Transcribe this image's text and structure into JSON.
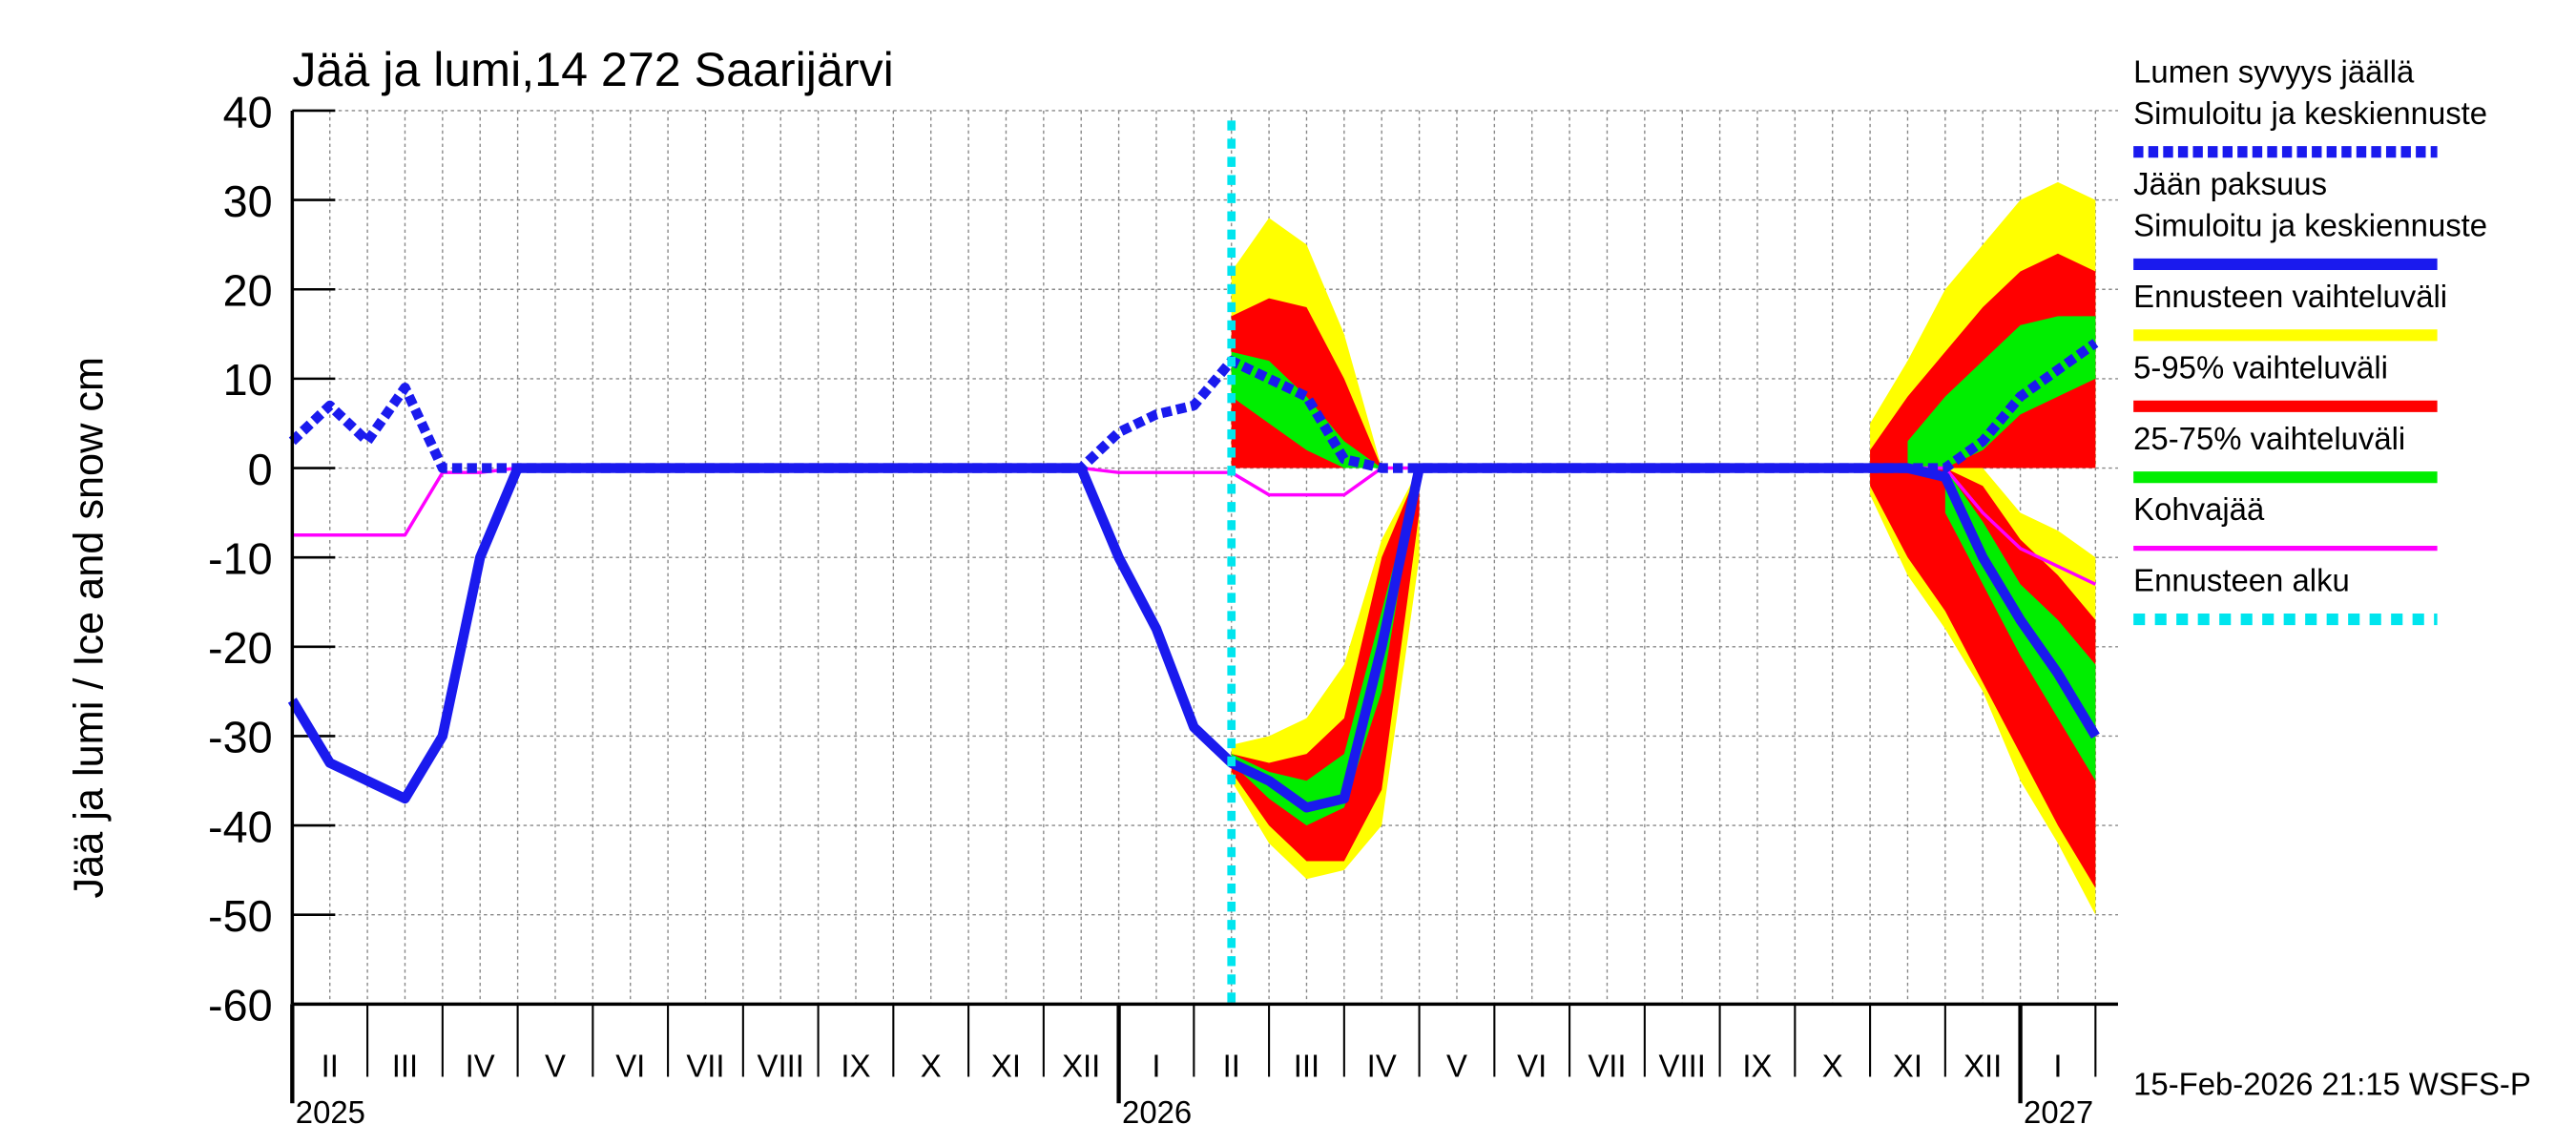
{
  "chart_data": {
    "type": "band-line",
    "title": "Jää ja lumi,14 272 Saarijärvi",
    "y_label": "Jää ja lumi / Ice and snow    cm",
    "footer": "15-Feb-2026 21:15 WSFS-P",
    "ylim": [
      -60,
      40
    ],
    "yticks": [
      -60,
      -50,
      -40,
      -30,
      -20,
      -10,
      0,
      10,
      20,
      30,
      40
    ],
    "grid": true,
    "categories": [
      null,
      "II",
      null,
      "III",
      null,
      "IV",
      null,
      "V",
      null,
      "VI",
      null,
      "VII",
      null,
      "VIII",
      null,
      "IX",
      null,
      "X",
      null,
      "XI",
      null,
      "XII",
      null,
      "I",
      null,
      "II",
      null,
      "III",
      null,
      "IV",
      null,
      "V",
      null,
      "VI",
      null,
      "VII",
      null,
      "VIII",
      null,
      "IX",
      null,
      "X",
      null,
      "XI",
      null,
      "XII",
      null,
      "I",
      null
    ],
    "years": [
      "2025",
      null,
      null,
      null,
      null,
      null,
      null,
      null,
      null,
      null,
      null,
      null,
      null,
      null,
      null,
      null,
      null,
      null,
      null,
      null,
      null,
      null,
      "2026",
      null,
      null,
      null,
      null,
      null,
      null,
      null,
      null,
      null,
      null,
      null,
      null,
      null,
      null,
      null,
      null,
      null,
      null,
      null,
      null,
      null,
      null,
      null,
      "2027",
      null,
      null
    ],
    "forecast_start": {
      "index": 25,
      "color": "#00e5ee"
    },
    "bands": [
      {
        "color": "#ffff00",
        "high": [
          null,
          null,
          null,
          null,
          null,
          null,
          null,
          null,
          null,
          null,
          null,
          null,
          null,
          null,
          null,
          null,
          null,
          null,
          null,
          null,
          null,
          null,
          null,
          null,
          null,
          22,
          28,
          25,
          15,
          0,
          null,
          null,
          null,
          null,
          null,
          null,
          null,
          null,
          null,
          null,
          null,
          null,
          5,
          12,
          20,
          25,
          30,
          32,
          30
        ],
        "low": [
          null,
          null,
          null,
          null,
          null,
          null,
          null,
          null,
          null,
          null,
          null,
          null,
          null,
          null,
          null,
          null,
          null,
          null,
          null,
          null,
          null,
          null,
          null,
          null,
          null,
          0,
          0,
          0,
          0,
          0,
          null,
          null,
          null,
          null,
          null,
          null,
          null,
          null,
          null,
          null,
          null,
          null,
          0,
          0,
          0,
          0,
          0,
          0,
          0
        ]
      },
      {
        "color": "#ffff00",
        "high": [
          null,
          null,
          null,
          null,
          null,
          null,
          null,
          null,
          null,
          null,
          null,
          null,
          null,
          null,
          null,
          null,
          null,
          null,
          null,
          null,
          null,
          null,
          null,
          null,
          null,
          -31,
          -30,
          -28,
          -22,
          -8,
          0,
          null,
          null,
          null,
          null,
          null,
          null,
          null,
          null,
          null,
          null,
          null,
          0,
          0,
          0,
          0,
          -5,
          -7,
          -10
        ],
        "low": [
          null,
          null,
          null,
          null,
          null,
          null,
          null,
          null,
          null,
          null,
          null,
          null,
          null,
          null,
          null,
          null,
          null,
          null,
          null,
          null,
          null,
          null,
          null,
          null,
          null,
          -35,
          -42,
          -46,
          -45,
          -40,
          -10,
          null,
          null,
          null,
          null,
          null,
          null,
          null,
          null,
          null,
          null,
          null,
          -3,
          -12,
          -18,
          -25,
          -35,
          -42,
          -50
        ]
      },
      {
        "color": "#ff0000",
        "high": [
          null,
          null,
          null,
          null,
          null,
          null,
          null,
          null,
          null,
          null,
          null,
          null,
          null,
          null,
          null,
          null,
          null,
          null,
          null,
          null,
          null,
          null,
          null,
          null,
          null,
          17,
          19,
          18,
          10,
          0,
          null,
          null,
          null,
          null,
          null,
          null,
          null,
          null,
          null,
          null,
          null,
          null,
          2,
          8,
          13,
          18,
          22,
          24,
          22
        ],
        "low": [
          null,
          null,
          null,
          null,
          null,
          null,
          null,
          null,
          null,
          null,
          null,
          null,
          null,
          null,
          null,
          null,
          null,
          null,
          null,
          null,
          null,
          null,
          null,
          null,
          null,
          0,
          0,
          0,
          0,
          0,
          null,
          null,
          null,
          null,
          null,
          null,
          null,
          null,
          null,
          null,
          null,
          null,
          0,
          0,
          0,
          0,
          0,
          0,
          0
        ]
      },
      {
        "color": "#ff0000",
        "high": [
          null,
          null,
          null,
          null,
          null,
          null,
          null,
          null,
          null,
          null,
          null,
          null,
          null,
          null,
          null,
          null,
          null,
          null,
          null,
          null,
          null,
          null,
          null,
          null,
          null,
          -32,
          -33,
          -32,
          -28,
          -10,
          0,
          null,
          null,
          null,
          null,
          null,
          null,
          null,
          null,
          null,
          null,
          null,
          0,
          0,
          0,
          -2,
          -8,
          -12,
          -17
        ],
        "low": [
          null,
          null,
          null,
          null,
          null,
          null,
          null,
          null,
          null,
          null,
          null,
          null,
          null,
          null,
          null,
          null,
          null,
          null,
          null,
          null,
          null,
          null,
          null,
          null,
          null,
          -34,
          -40,
          -44,
          -44,
          -36,
          -5,
          null,
          null,
          null,
          null,
          null,
          null,
          null,
          null,
          null,
          null,
          null,
          -2,
          -10,
          -16,
          -24,
          -32,
          -40,
          -47
        ]
      },
      {
        "color": "#00ee00",
        "high": [
          null,
          null,
          null,
          null,
          null,
          null,
          null,
          null,
          null,
          null,
          null,
          null,
          null,
          null,
          null,
          null,
          null,
          null,
          null,
          null,
          null,
          null,
          null,
          null,
          null,
          13,
          12,
          8,
          3,
          0,
          null,
          null,
          null,
          null,
          null,
          null,
          null,
          null,
          null,
          null,
          null,
          null,
          null,
          3,
          8,
          12,
          16,
          17,
          17
        ],
        "low": [
          null,
          null,
          null,
          null,
          null,
          null,
          null,
          null,
          null,
          null,
          null,
          null,
          null,
          null,
          null,
          null,
          null,
          null,
          null,
          null,
          null,
          null,
          null,
          null,
          null,
          8,
          5,
          2,
          0,
          0,
          null,
          null,
          null,
          null,
          null,
          null,
          null,
          null,
          null,
          null,
          null,
          null,
          null,
          0,
          0,
          2,
          6,
          8,
          10
        ]
      },
      {
        "color": "#00ee00",
        "high": [
          null,
          null,
          null,
          null,
          null,
          null,
          null,
          null,
          null,
          null,
          null,
          null,
          null,
          null,
          null,
          null,
          null,
          null,
          null,
          null,
          null,
          null,
          null,
          null,
          null,
          -32,
          -34,
          -35,
          -32,
          -16,
          0,
          null,
          null,
          null,
          null,
          null,
          null,
          null,
          null,
          null,
          null,
          null,
          null,
          null,
          0,
          -6,
          -13,
          -17,
          -22
        ],
        "low": [
          null,
          null,
          null,
          null,
          null,
          null,
          null,
          null,
          null,
          null,
          null,
          null,
          null,
          null,
          null,
          null,
          null,
          null,
          null,
          null,
          null,
          null,
          null,
          null,
          null,
          -33,
          -37,
          -40,
          -38,
          -25,
          0,
          null,
          null,
          null,
          null,
          null,
          null,
          null,
          null,
          null,
          null,
          null,
          null,
          null,
          -5,
          -13,
          -21,
          -28,
          -35
        ]
      }
    ],
    "series": [
      {
        "color": "#ff00ff",
        "style": "thin",
        "values": [
          -7.5,
          -7.5,
          -7.5,
          -7.5,
          -0.5,
          -0.5,
          0,
          0,
          0,
          0,
          0,
          0,
          0,
          0,
          0,
          0,
          0,
          0,
          0,
          0,
          0,
          0,
          -0.5,
          -0.5,
          -0.5,
          -0.5,
          -3,
          -3,
          -3,
          0,
          0,
          0,
          0,
          0,
          0,
          0,
          0,
          0,
          0,
          0,
          0,
          0,
          0,
          0,
          0,
          -5,
          -9,
          -11,
          -13
        ]
      },
      {
        "color": "#1a1aee",
        "style": "solid",
        "values": [
          -26,
          -33,
          -35,
          -37,
          -30,
          -10,
          0,
          0,
          0,
          0,
          0,
          0,
          0,
          0,
          0,
          0,
          0,
          0,
          0,
          0,
          0,
          0,
          -10,
          -18,
          -29,
          -33,
          -35,
          -38,
          -37,
          -20,
          0,
          0,
          0,
          0,
          0,
          0,
          0,
          0,
          0,
          0,
          0,
          0,
          0,
          0,
          -1,
          -10,
          -17,
          -23,
          -30
        ]
      },
      {
        "color": "#1a1aee",
        "style": "dashed",
        "values": [
          3,
          7,
          3,
          9,
          0,
          0,
          0,
          0,
          0,
          0,
          0,
          0,
          0,
          0,
          0,
          0,
          0,
          0,
          0,
          0,
          0,
          0,
          4,
          6,
          7,
          12,
          10,
          8,
          1,
          0,
          0,
          0,
          0,
          0,
          0,
          0,
          0,
          0,
          0,
          0,
          0,
          0,
          0,
          0,
          0,
          3,
          8,
          11,
          14
        ]
      }
    ],
    "legend": [
      {
        "lines": [
          "Lumen syvyys jäällä",
          "Simuloitu ja keskiennuste"
        ],
        "color": "#1a1aee",
        "style": "dashed"
      },
      {
        "lines": [
          "Jään paksuus",
          "Simuloitu ja keskiennuste"
        ],
        "color": "#1a1aee",
        "style": "solid"
      },
      {
        "lines": [
          "Ennusteen vaihteluväli"
        ],
        "color": "#ffff00",
        "style": "solid"
      },
      {
        "lines": [
          "5-95% vaihteluväli"
        ],
        "color": "#ff0000",
        "style": "solid"
      },
      {
        "lines": [
          "25-75% vaihteluväli"
        ],
        "color": "#00ee00",
        "style": "solid"
      },
      {
        "lines": [
          "Kohvajää"
        ],
        "color": "#ff00ff",
        "style": "thin"
      },
      {
        "lines": [
          "Ennusteen alku"
        ],
        "color": "#00e5ee",
        "style": "dotted"
      }
    ]
  }
}
